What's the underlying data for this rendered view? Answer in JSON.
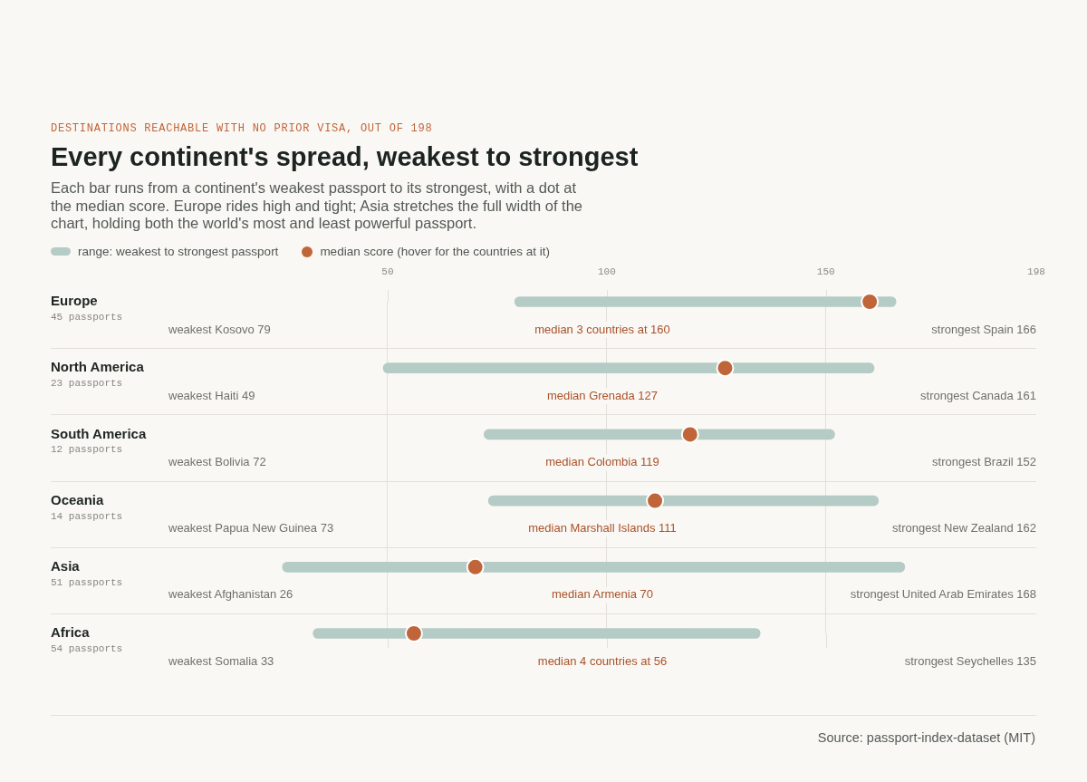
{
  "chart_data": {
    "type": "bar",
    "orientation": "horizontal",
    "title": "Every continent's spread, weakest to strongest",
    "subtitle": "Each bar runs from a continent's weakest passport to its strongest, with a dot at the median score. Europe rides high and tight; Asia stretches the full width of the chart, holding both the world's most and least powerful passport.",
    "categories": [
      "Europe",
      "North America",
      "South America",
      "Oceania",
      "Asia",
      "Africa"
    ],
    "series": [
      {
        "name": "range: weakest to strongest passport",
        "color": "#b4cbc6",
        "base": [
          79,
          49,
          72,
          73,
          26,
          33
        ],
        "values": [
          87,
          112,
          80,
          89,
          142,
          102
        ]
      },
      {
        "name": "median score (hover for the countries at it)",
        "type": "scatter",
        "color": "#c0653a",
        "values": [
          160,
          127,
          119,
          111,
          70,
          56
        ]
      }
    ],
    "xlim": [
      0,
      198
    ],
    "xticks": [
      50,
      100,
      150,
      198
    ],
    "grid": "x",
    "legend": "top left",
    "marker": "circle",
    "annotations": [
      "DESTINATIONS REACHABLE WITH NO PRIOR VISA, OUT OF 198",
      "45 passports",
      "weakest Kosovo 79",
      "median 3 countries at 160",
      "strongest Spain 166",
      "23 passports",
      "weakest Haiti 49",
      "median Grenada 127",
      "strongest Canada 161",
      "12 passports",
      "weakest Bolivia 72",
      "median Colombia 119",
      "strongest Brazil 152",
      "14 passports",
      "weakest Papua New Guinea 73",
      "median Marshall Islands 111",
      "strongest New Zealand 162",
      "51 passports",
      "weakest Afghanistan 26",
      "median Armenia 70",
      "strongest United Arab Emirates 168",
      "54 passports",
      "weakest Somalia 33",
      "median 4 countries at 56",
      "strongest Seychelles 135",
      "Source: passport-index-dataset (MIT)"
    ]
  }
}
